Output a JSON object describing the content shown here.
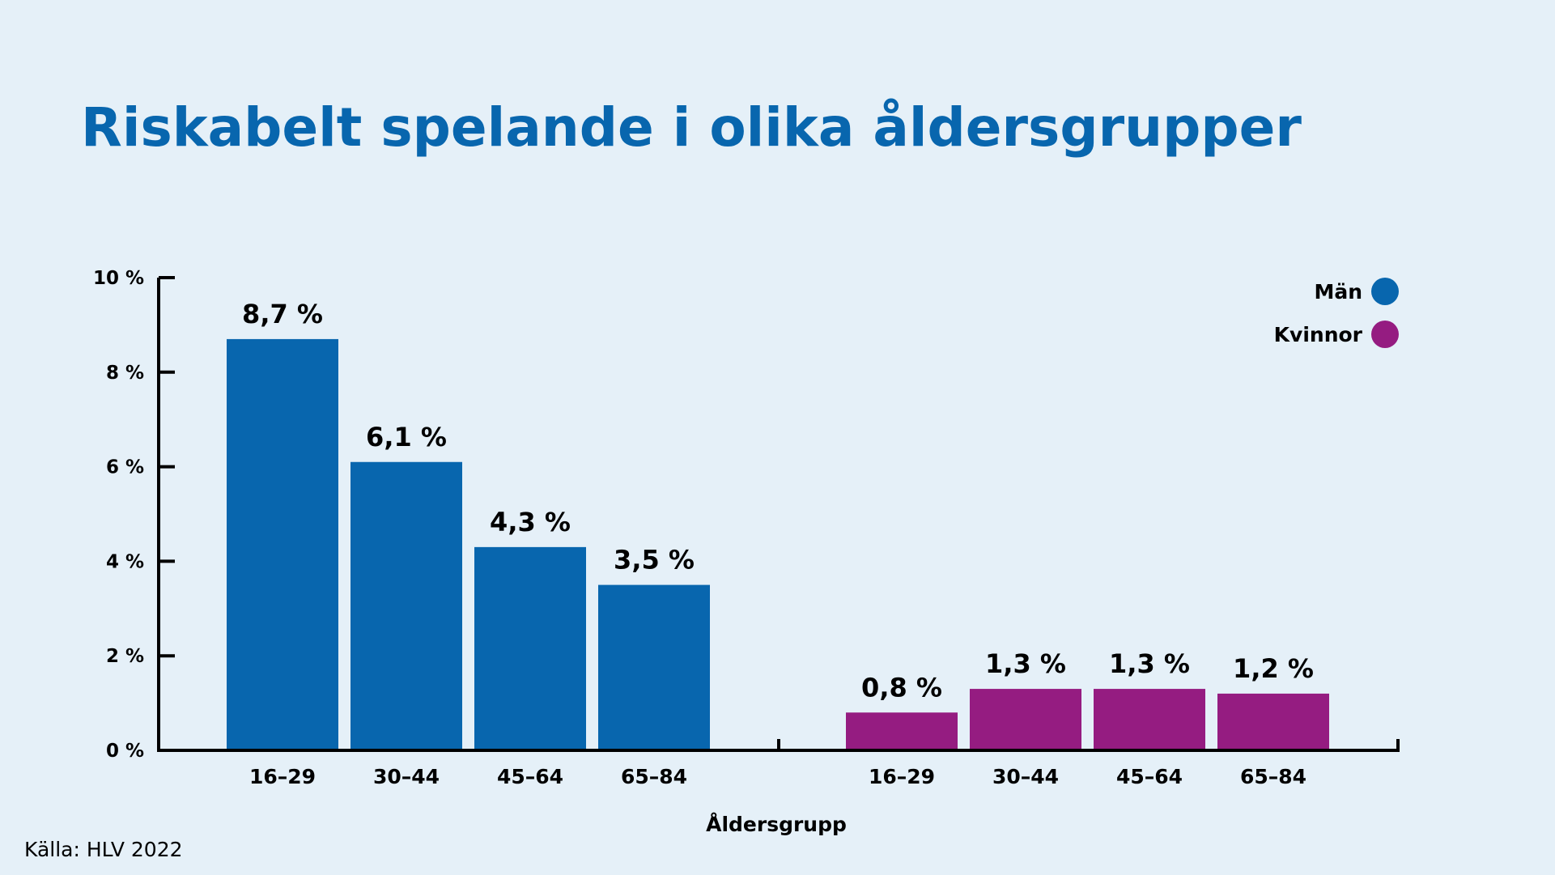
{
  "chart_data": {
    "type": "bar",
    "title": "Riskabelt spelande i olika åldersgrupper",
    "xlabel": "Åldersgrupp",
    "ylabel": "",
    "ylim": [
      0,
      10
    ],
    "yticks": [
      {
        "value": 0,
        "label": "0 %"
      },
      {
        "value": 2,
        "label": "2 %"
      },
      {
        "value": 4,
        "label": "4 %"
      },
      {
        "value": 6,
        "label": "6 %"
      },
      {
        "value": 8,
        "label": "8 %"
      },
      {
        "value": 10,
        "label": "10 %"
      }
    ],
    "categories": [
      "16–29",
      "30–44",
      "45–64",
      "65–84"
    ],
    "series": [
      {
        "name": "Män",
        "color": "#0866ae",
        "values": [
          8.7,
          6.1,
          4.3,
          3.5
        ],
        "labels": [
          "8,7 %",
          "6,1 %",
          "4,3 %",
          "3,5 %"
        ]
      },
      {
        "name": "Kvinnor",
        "color": "#951c81",
        "values": [
          0.8,
          1.3,
          1.3,
          1.2
        ],
        "labels": [
          "0,8 %",
          "1,3 %",
          "1,3 %",
          "1,2 %"
        ]
      }
    ],
    "legend_position": "top-right",
    "grid": false,
    "source": "Källa: HLV 2022"
  }
}
